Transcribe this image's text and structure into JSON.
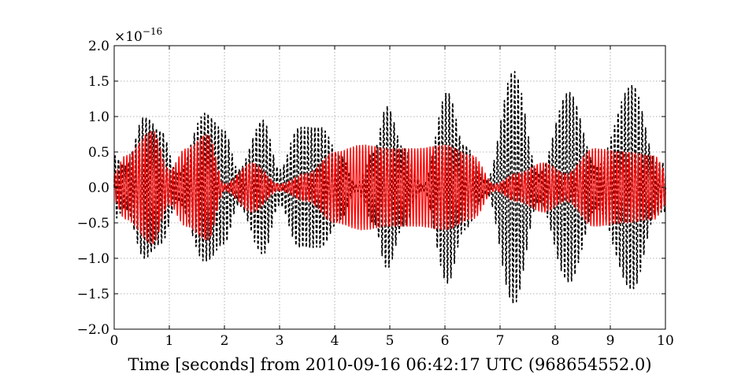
{
  "chart_data": {
    "type": "line",
    "title": "",
    "xlabel": "Time [seconds] from 2010-09-16 06:42:17 UTC (968654552.0)",
    "ylabel": "",
    "y_offset_text": "×10",
    "y_offset_exponent": "−16",
    "xlim": [
      0,
      10
    ],
    "ylim": [
      -2.0,
      2.0
    ],
    "x_ticks": [
      0,
      1,
      2,
      3,
      4,
      5,
      6,
      7,
      8,
      9,
      10
    ],
    "x_tick_labels": [
      "0",
      "1",
      "2",
      "3",
      "4",
      "5",
      "6",
      "7",
      "8",
      "9",
      "10"
    ],
    "y_ticks": [
      -2.0,
      -1.5,
      -1.0,
      -0.5,
      0.0,
      0.5,
      1.0,
      1.5,
      2.0
    ],
    "y_tick_labels": [
      "−2.0",
      "−1.5",
      "−1.0",
      "−0.5",
      "0.0",
      "0.5",
      "1.0",
      "1.5",
      "2.0"
    ],
    "grid": true,
    "legend": "none",
    "series": [
      {
        "color": "#000000",
        "style": "dashed",
        "carrier_frequency_hz": 16,
        "envelope": {
          "t": [
            0,
            0.2,
            0.55,
            0.85,
            1.15,
            1.65,
            2.0,
            2.25,
            2.7,
            3.0,
            3.35,
            3.75,
            4.1,
            4.4,
            4.7,
            4.95,
            5.25,
            5.6,
            6.05,
            6.35,
            6.75,
            7.25,
            7.7,
            8.25,
            8.75,
            9.4,
            9.85,
            10
          ],
          "amplitude": [
            0.45,
            0.3,
            1.0,
            0.8,
            0.2,
            1.05,
            0.8,
            0.25,
            0.95,
            0.25,
            0.85,
            0.85,
            0.45,
            0.05,
            0.5,
            1.15,
            0.55,
            0.05,
            1.35,
            0.6,
            0.1,
            1.65,
            0.2,
            1.35,
            0.3,
            1.45,
            0.35,
            0.35
          ]
        }
      },
      {
        "color": "#ff0000",
        "style": "solid",
        "carrier_frequency_hz": 18,
        "envelope": {
          "t": [
            0,
            0.2,
            0.7,
            1.0,
            1.3,
            1.7,
            2.0,
            2.5,
            3.0,
            3.5,
            4.0,
            4.5,
            5.0,
            5.5,
            6.0,
            6.5,
            6.9,
            7.3,
            7.8,
            8.2,
            8.7,
            9.3,
            9.8,
            10
          ],
          "amplitude": [
            0.2,
            0.45,
            0.8,
            0.25,
            0.55,
            0.75,
            0.05,
            0.35,
            0.05,
            0.2,
            0.5,
            0.6,
            0.55,
            0.55,
            0.6,
            0.45,
            0.05,
            0.2,
            0.35,
            0.2,
            0.55,
            0.5,
            0.45,
            0.25
          ]
        }
      }
    ]
  }
}
